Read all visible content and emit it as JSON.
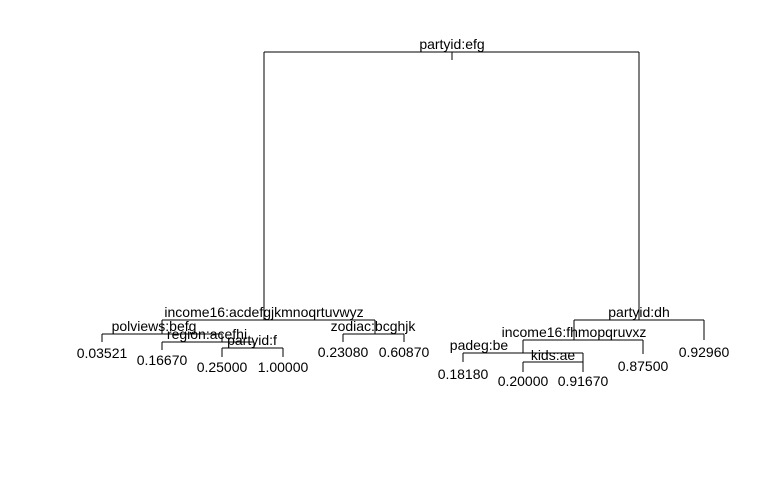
{
  "tree": {
    "node": "partyid:efg",
    "left": {
      "node": "income16:acdefgjkmnoqrtuvwyz",
      "left": {
        "node": "polviews:befg",
        "left": {
          "leaf": "0.03521"
        },
        "right": {
          "node": "region:acefhi",
          "left": {
            "leaf": "0.16670"
          },
          "right": {
            "node": "partyid:f",
            "left": {
              "leaf": "0.25000"
            },
            "right": {
              "leaf": "1.00000"
            }
          }
        }
      },
      "right": {
        "node": "zodiac:bcghjk",
        "left": {
          "leaf": "0.23080"
        },
        "right": {
          "leaf": "0.60870"
        }
      }
    },
    "right": {
      "node": "partyid:dh",
      "left": {
        "node": "income16:fhmopqruvxz",
        "left": {
          "node": "padeg:be",
          "left": {
            "leaf": "0.18180"
          },
          "right": {
            "node": "kids:ae",
            "left": {
              "leaf": "0.20000"
            },
            "right": {
              "leaf": "0.91670"
            }
          }
        },
        "right": {
          "leaf": "0.87500"
        }
      },
      "right": {
        "leaf": "0.92960"
      }
    }
  }
}
